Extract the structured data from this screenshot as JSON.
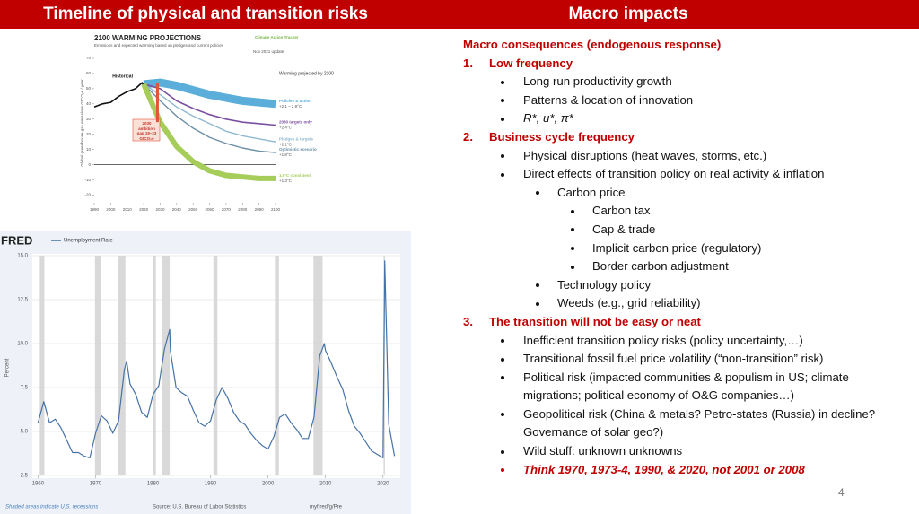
{
  "header": {
    "left_title": "Timeline of physical and transition risks",
    "right_title": "Macro impacts"
  },
  "warming_chart": {
    "type": "line",
    "title": "2100 WARMING PROJECTIONS",
    "subtitle": "Emissions and expected warming based on pledges and current policies",
    "update": "Nov 2021 update",
    "logo": "Climate Action Tracker",
    "y_label": "Global greenhouse gas emissions GtCO₂e / year",
    "legend_title": "Warming projected by 2100",
    "historical_label": "Historical",
    "annotation": "2030 ambition gap 19–23 GtCO₂e",
    "xlim": [
      1990,
      2100
    ],
    "xticks": [
      1990,
      2000,
      2010,
      2020,
      2030,
      2040,
      2050,
      2060,
      2070,
      2080,
      2090,
      2100
    ],
    "ylim": [
      -25,
      80
    ],
    "yticks": [
      -20,
      -10,
      0,
      10,
      20,
      30,
      40,
      50,
      60,
      70
    ],
    "series": [
      {
        "name": "Historical",
        "color": "#111111",
        "x": [
          1990,
          1995,
          2000,
          2005,
          2010,
          2015,
          2019,
          2020
        ],
        "values": [
          38,
          40,
          41,
          45,
          48,
          50,
          54,
          52
        ]
      },
      {
        "name": "Policies & action",
        "warming": "+2.1 – 2.9°C",
        "color": "#5aaed9",
        "x": [
          2020,
          2030,
          2040,
          2050,
          2060,
          2070,
          2080,
          2090,
          2100
        ],
        "values": [
          53,
          54,
          52,
          49,
          46,
          44,
          42,
          41,
          40
        ]
      },
      {
        "name": "2030 targets only",
        "warming": "+2.4°C",
        "color": "#7a4fa0",
        "x": [
          2020,
          2030,
          2040,
          2050,
          2060,
          2070,
          2080,
          2090,
          2100
        ],
        "values": [
          53,
          50,
          42,
          37,
          33,
          30,
          28,
          27,
          26
        ]
      },
      {
        "name": "Pledges & targets",
        "warming": "+2.1°C",
        "color": "#8fb8d0",
        "x": [
          2020,
          2030,
          2040,
          2050,
          2060,
          2070,
          2080,
          2090,
          2100
        ],
        "values": [
          53,
          46,
          38,
          32,
          27,
          22,
          19,
          17,
          15
        ]
      },
      {
        "name": "Optimistic scenario",
        "warming": "+1.8°C",
        "color": "#6b8fa6",
        "x": [
          2020,
          2030,
          2040,
          2050,
          2060,
          2070,
          2080,
          2090,
          2100
        ],
        "values": [
          53,
          42,
          32,
          24,
          18,
          14,
          11,
          9,
          8
        ]
      },
      {
        "name": "1.5°C consistent",
        "warming": "+1.3°C",
        "color": "#a6cc5a",
        "x": [
          2020,
          2030,
          2040,
          2050,
          2060,
          2070,
          2080,
          2090,
          2100
        ],
        "values": [
          53,
          28,
          12,
          2,
          -4,
          -7,
          -8,
          -9,
          -9
        ]
      }
    ]
  },
  "unemployment_chart": {
    "type": "line",
    "logo": "FRED",
    "y_label": "Percent",
    "note": "Shaded areas indicate U.S. recessions",
    "source": "Source: U.S. Bureau of Labor Statistics",
    "link": "myf.red/g/Pre",
    "xlim": [
      1959,
      2023
    ],
    "xticks": [
      1960,
      1970,
      1980,
      1990,
      2000,
      2010,
      2020
    ],
    "ylim": [
      2.5,
      15
    ],
    "yticks": [
      {
        "value": 2.5,
        "label": "2.5"
      },
      {
        "value": 5,
        "label": "5.0"
      },
      {
        "value": 7.5,
        "label": "7.5"
      },
      {
        "value": 10,
        "label": "10.0"
      },
      {
        "value": 12.5,
        "label": "12.5"
      },
      {
        "value": 15,
        "label": "15.0"
      }
    ],
    "grid": true,
    "recessions": [
      [
        1960.3,
        1961.1
      ],
      [
        1969.9,
        1970.9
      ],
      [
        1973.9,
        1975.2
      ],
      [
        1980.0,
        1980.5
      ],
      [
        1981.5,
        1982.9
      ],
      [
        1990.5,
        1991.2
      ],
      [
        2001.2,
        2001.9
      ],
      [
        2007.9,
        2009.5
      ],
      [
        2020.1,
        2020.3
      ]
    ],
    "series": [
      {
        "name": "Unemployment Rate",
        "color": "#4572a7",
        "x": [
          1960,
          1961,
          1962,
          1963,
          1964,
          1965,
          1966,
          1967,
          1968,
          1969,
          1970,
          1971,
          1972,
          1973,
          1974,
          1975,
          1975.4,
          1976,
          1977,
          1978,
          1979,
          1980,
          1981,
          1982,
          1982.9,
          1983,
          1984,
          1985,
          1986,
          1987,
          1988,
          1989,
          1990,
          1991,
          1992,
          1993,
          1994,
          1995,
          1996,
          1997,
          1998,
          1999,
          2000,
          2001,
          2002,
          2003,
          2004,
          2005,
          2006,
          2007,
          2008,
          2009,
          2009.8,
          2010,
          2011,
          2012,
          2013,
          2014,
          2015,
          2016,
          2017,
          2018,
          2019,
          2020,
          2020.3,
          2021,
          2022
        ],
        "values": [
          5.5,
          6.7,
          5.5,
          5.7,
          5.2,
          4.5,
          3.8,
          3.8,
          3.6,
          3.5,
          4.9,
          5.9,
          5.6,
          4.9,
          5.6,
          8.5,
          9.0,
          7.7,
          7.1,
          6.1,
          5.8,
          7.1,
          7.6,
          9.7,
          10.8,
          9.6,
          7.5,
          7.2,
          7.0,
          6.2,
          5.5,
          5.3,
          5.6,
          6.8,
          7.5,
          6.9,
          6.1,
          5.6,
          5.4,
          4.9,
          4.5,
          4.2,
          4.0,
          4.7,
          5.8,
          6.0,
          5.5,
          5.1,
          4.6,
          4.6,
          5.8,
          9.3,
          10.0,
          9.6,
          8.9,
          8.1,
          7.4,
          6.2,
          5.3,
          4.9,
          4.4,
          3.9,
          3.7,
          3.5,
          14.7,
          5.4,
          3.6
        ]
      }
    ]
  },
  "macro": {
    "heading": "Macro consequences (endogenous response)",
    "sections": [
      {
        "number": "1.",
        "title": "Low frequency",
        "items": [
          {
            "text": "Long run productivity growth"
          },
          {
            "text": "Patterns & location of innovation"
          },
          {
            "text": "R*, u*, π*",
            "style": "italic"
          }
        ]
      },
      {
        "number": "2.",
        "title": "Business cycle frequency",
        "items": [
          {
            "text": "Physical disruptions (heat waves, storms, etc.)"
          },
          {
            "text": "Direct effects of transition policy on real activity & inflation",
            "items": [
              {
                "text": "Carbon price",
                "items": [
                  {
                    "text": "Carbon tax"
                  },
                  {
                    "text": "Cap & trade"
                  },
                  {
                    "text": "Implicit carbon price (regulatory)"
                  },
                  {
                    "text": "Border carbon adjustment"
                  }
                ]
              },
              {
                "text": "Technology policy"
              },
              {
                "text": "Weeds (e.g., grid reliability)"
              }
            ]
          }
        ]
      },
      {
        "number": "3.",
        "title": "The transition will not be easy or neat",
        "items": [
          {
            "text": "Inefficient transition policy risks (policy uncertainty,…)"
          },
          {
            "text": "Transitional fossil fuel price volatility (“non-transition” risk)"
          },
          {
            "text": "Political risk (impacted communities & populism in US; climate migrations; political economy of O&G companies…)"
          },
          {
            "text": "Geopolitical risk (China & metals? Petro-states (Russia) in decline? Governance of solar geo?)"
          },
          {
            "text": "Wild stuff: unknown unknowns"
          },
          {
            "text": "Think 1970, 1973-4, 1990, & 2020, not 2001 or 2008",
            "style": "emphasis"
          }
        ]
      }
    ]
  },
  "page_number": "4"
}
